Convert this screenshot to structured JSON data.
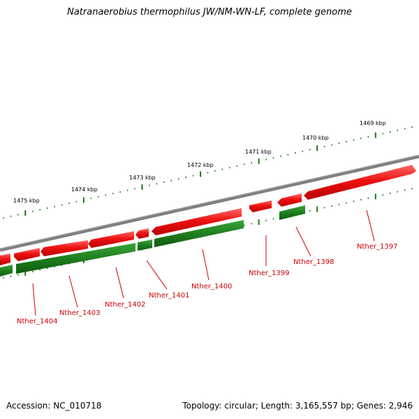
{
  "title": "Natranaerobius thermophilus JW/NM-WN-LF, complete genome",
  "footer": {
    "accession": "Accession: NC_010718",
    "summary": "Topology: circular; Length: 3,165,557 bp; Genes: 2,946"
  },
  "colors": {
    "forward": "#ee1111",
    "reverse": "#1e7f1e",
    "backbone": "#808080",
    "ticks": "#1a7a1a",
    "label": "#cc0000"
  },
  "kbp_labels": [
    "1469 kbp",
    "1470 kbp",
    "1471 kbp",
    "1472 kbp",
    "1473 kbp",
    "1474 kbp",
    "1475 kbp"
  ],
  "gene_labels": [
    "Nther_1397",
    "Nther_1398",
    "Nther_1399",
    "Nther_1400",
    "Nther_1401",
    "Nther_1402",
    "Nther_1403",
    "Nther_1404"
  ]
}
